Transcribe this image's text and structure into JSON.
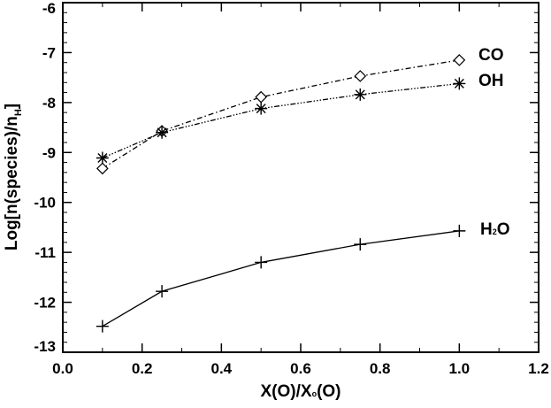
{
  "chart_data": {
    "type": "line",
    "title": "",
    "xlabel": "X(O)/X",
    "xlabel_sub": "o",
    "xlabel_tail": "(O)",
    "ylabel": "Log[n(species)/n",
    "ylabel_sub": "H",
    "ylabel_tail": "]",
    "xlim": [
      0.0,
      1.2
    ],
    "ylim": [
      -13,
      -6
    ],
    "xticks": [
      "0.0",
      "0.2",
      "0.4",
      "0.6",
      "0.8",
      "1.0",
      "1.2"
    ],
    "yticks": [
      "-6",
      "-7",
      "-8",
      "-9",
      "-10",
      "-11",
      "-12",
      "-13"
    ],
    "grid": false,
    "x": [
      0.1,
      0.25,
      0.5,
      0.75,
      1.0
    ],
    "series": [
      {
        "name": "CO",
        "label": "CO",
        "marker": "diamond",
        "linestyle": "dash-dot",
        "values": [
          -9.32,
          -8.57,
          -7.89,
          -7.47,
          -7.15
        ]
      },
      {
        "name": "OH",
        "label": "OH",
        "marker": "asterisk",
        "linestyle": "dash-dot-dot-dot",
        "values": [
          -9.11,
          -8.6,
          -8.12,
          -7.84,
          -7.62
        ]
      },
      {
        "name": "H2O",
        "label": "H",
        "label_sub": "2",
        "label_tail": "O",
        "marker": "plus",
        "linestyle": "solid",
        "values": [
          -12.48,
          -11.78,
          -11.2,
          -10.84,
          -10.57
        ]
      }
    ],
    "color": "#000000"
  }
}
